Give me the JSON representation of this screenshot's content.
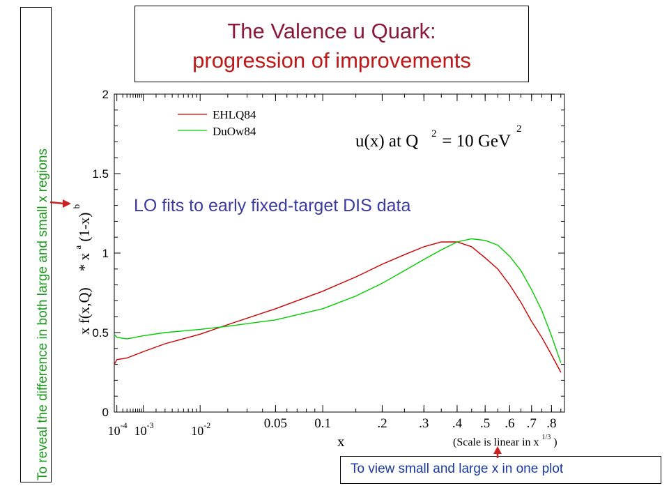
{
  "title_line1": "The Valence u Quark:",
  "title_line2": "progression of improvements",
  "side_note": "To reveal the difference in both large and small x regions",
  "bottom_note": "To view small and large x in one plot",
  "colors": {
    "title1": "#8b1a3a",
    "title2": "#c01818",
    "series1": "#cc0000",
    "series2": "#00cc00",
    "annotation": "#3a3aa0",
    "arrow": "#cc2222"
  },
  "chart_data": {
    "type": "line",
    "scale_note": "(Scale is linear in x",
    "scale_note_sup": "1/3",
    "scale_note_end": ")",
    "xlabel": "x",
    "ylabel": "x f(x,Q)",
    "ylabel_extra": "* x",
    "ylabel_a": "a",
    "ylabel_mid": "(1-x)",
    "ylabel_b": "b",
    "formula_main": "u(x) at Q",
    "formula_sup": "2",
    "formula_mid": " = 10 GeV",
    "formula_sup2": "2",
    "annotation": "LO fits to early fixed-target DIS data",
    "ylim": [
      0,
      2
    ],
    "y_ticks": [
      {
        "value": 0,
        "label": "0"
      },
      {
        "value": 0.5,
        "label": "0.5"
      },
      {
        "value": 1,
        "label": "1"
      },
      {
        "value": 1.5,
        "label": "1.5"
      },
      {
        "value": 2,
        "label": "2"
      }
    ],
    "x_ticks": [
      {
        "value": 0.0001,
        "base": "10",
        "exp": "-4"
      },
      {
        "value": 0.001,
        "base": "10",
        "exp": "-3"
      },
      {
        "value": 0.01,
        "base": "10",
        "exp": "-2"
      },
      {
        "value": 0.05,
        "label": "0.05"
      },
      {
        "value": 0.1,
        "label": "0.1"
      },
      {
        "value": 0.2,
        "label": ".2"
      },
      {
        "value": 0.3,
        "label": ".3"
      },
      {
        "value": 0.4,
        "label": ".4"
      },
      {
        "value": 0.5,
        "label": ".5"
      },
      {
        "value": 0.6,
        "label": ".6"
      },
      {
        "value": 0.7,
        "label": ".7"
      },
      {
        "value": 0.8,
        "label": ".8"
      }
    ],
    "series": [
      {
        "name": "EHLQ84",
        "color": "#cc0000",
        "points": [
          [
            7e-05,
            0.3
          ],
          [
            0.0001,
            0.33
          ],
          [
            0.0003,
            0.34
          ],
          [
            0.001,
            0.38
          ],
          [
            0.003,
            0.43
          ],
          [
            0.01,
            0.49
          ],
          [
            0.02,
            0.55
          ],
          [
            0.05,
            0.65
          ],
          [
            0.1,
            0.76
          ],
          [
            0.15,
            0.85
          ],
          [
            0.2,
            0.93
          ],
          [
            0.25,
            0.99
          ],
          [
            0.3,
            1.04
          ],
          [
            0.35,
            1.07
          ],
          [
            0.4,
            1.07
          ],
          [
            0.45,
            1.04
          ],
          [
            0.5,
            0.97
          ],
          [
            0.55,
            0.9
          ],
          [
            0.6,
            0.8
          ],
          [
            0.65,
            0.69
          ],
          [
            0.7,
            0.57
          ],
          [
            0.75,
            0.47
          ],
          [
            0.8,
            0.36
          ],
          [
            0.85,
            0.25
          ]
        ]
      },
      {
        "name": "DuOw84",
        "color": "#00cc00",
        "points": [
          [
            7e-05,
            0.49
          ],
          [
            0.0001,
            0.47
          ],
          [
            0.0003,
            0.46
          ],
          [
            0.001,
            0.48
          ],
          [
            0.003,
            0.5
          ],
          [
            0.01,
            0.52
          ],
          [
            0.02,
            0.54
          ],
          [
            0.05,
            0.58
          ],
          [
            0.1,
            0.65
          ],
          [
            0.15,
            0.73
          ],
          [
            0.2,
            0.81
          ],
          [
            0.25,
            0.89
          ],
          [
            0.3,
            0.96
          ],
          [
            0.35,
            1.02
          ],
          [
            0.4,
            1.07
          ],
          [
            0.45,
            1.09
          ],
          [
            0.5,
            1.08
          ],
          [
            0.55,
            1.05
          ],
          [
            0.6,
            0.98
          ],
          [
            0.65,
            0.89
          ],
          [
            0.7,
            0.77
          ],
          [
            0.75,
            0.64
          ],
          [
            0.8,
            0.48
          ],
          [
            0.85,
            0.31
          ]
        ]
      }
    ]
  }
}
